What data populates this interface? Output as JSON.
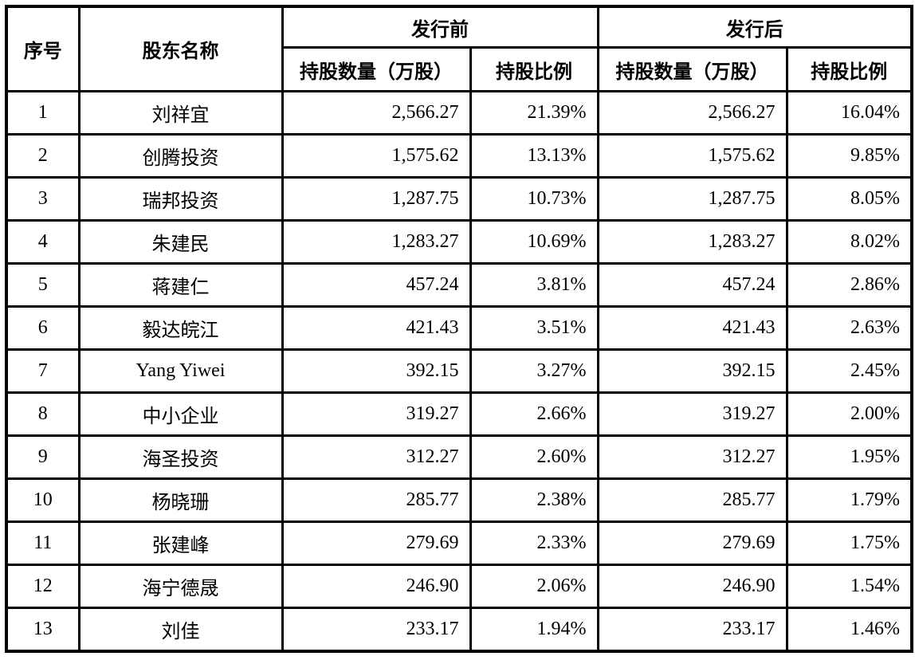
{
  "table": {
    "headers": {
      "index": "序号",
      "name": "股东名称",
      "group_pre": "发行前",
      "group_post": "发行后",
      "qty": "持股数量（万股）",
      "ratio": "持股比例"
    },
    "rows": [
      {
        "no": "1",
        "name": "刘祥宜",
        "pre_qty": "2,566.27",
        "pre_ratio": "21.39%",
        "post_qty": "2,566.27",
        "post_ratio": "16.04%"
      },
      {
        "no": "2",
        "name": "创腾投资",
        "pre_qty": "1,575.62",
        "pre_ratio": "13.13%",
        "post_qty": "1,575.62",
        "post_ratio": "9.85%"
      },
      {
        "no": "3",
        "name": "瑞邦投资",
        "pre_qty": "1,287.75",
        "pre_ratio": "10.73%",
        "post_qty": "1,287.75",
        "post_ratio": "8.05%"
      },
      {
        "no": "4",
        "name": "朱建民",
        "pre_qty": "1,283.27",
        "pre_ratio": "10.69%",
        "post_qty": "1,283.27",
        "post_ratio": "8.02%"
      },
      {
        "no": "5",
        "name": "蒋建仁",
        "pre_qty": "457.24",
        "pre_ratio": "3.81%",
        "post_qty": "457.24",
        "post_ratio": "2.86%"
      },
      {
        "no": "6",
        "name": "毅达皖江",
        "pre_qty": "421.43",
        "pre_ratio": "3.51%",
        "post_qty": "421.43",
        "post_ratio": "2.63%"
      },
      {
        "no": "7",
        "name": "Yang Yiwei",
        "pre_qty": "392.15",
        "pre_ratio": "3.27%",
        "post_qty": "392.15",
        "post_ratio": "2.45%"
      },
      {
        "no": "8",
        "name": "中小企业",
        "pre_qty": "319.27",
        "pre_ratio": "2.66%",
        "post_qty": "319.27",
        "post_ratio": "2.00%"
      },
      {
        "no": "9",
        "name": "海圣投资",
        "pre_qty": "312.27",
        "pre_ratio": "2.60%",
        "post_qty": "312.27",
        "post_ratio": "1.95%"
      },
      {
        "no": "10",
        "name": "杨晓珊",
        "pre_qty": "285.77",
        "pre_ratio": "2.38%",
        "post_qty": "285.77",
        "post_ratio": "1.79%"
      },
      {
        "no": "11",
        "name": "张建峰",
        "pre_qty": "279.69",
        "pre_ratio": "2.33%",
        "post_qty": "279.69",
        "post_ratio": "1.75%"
      },
      {
        "no": "12",
        "name": "海宁德晟",
        "pre_qty": "246.90",
        "pre_ratio": "2.06%",
        "post_qty": "246.90",
        "post_ratio": "1.54%"
      },
      {
        "no": "13",
        "name": "刘佳",
        "pre_qty": "233.17",
        "pre_ratio": "1.94%",
        "post_qty": "233.17",
        "post_ratio": "1.46%"
      }
    ]
  }
}
